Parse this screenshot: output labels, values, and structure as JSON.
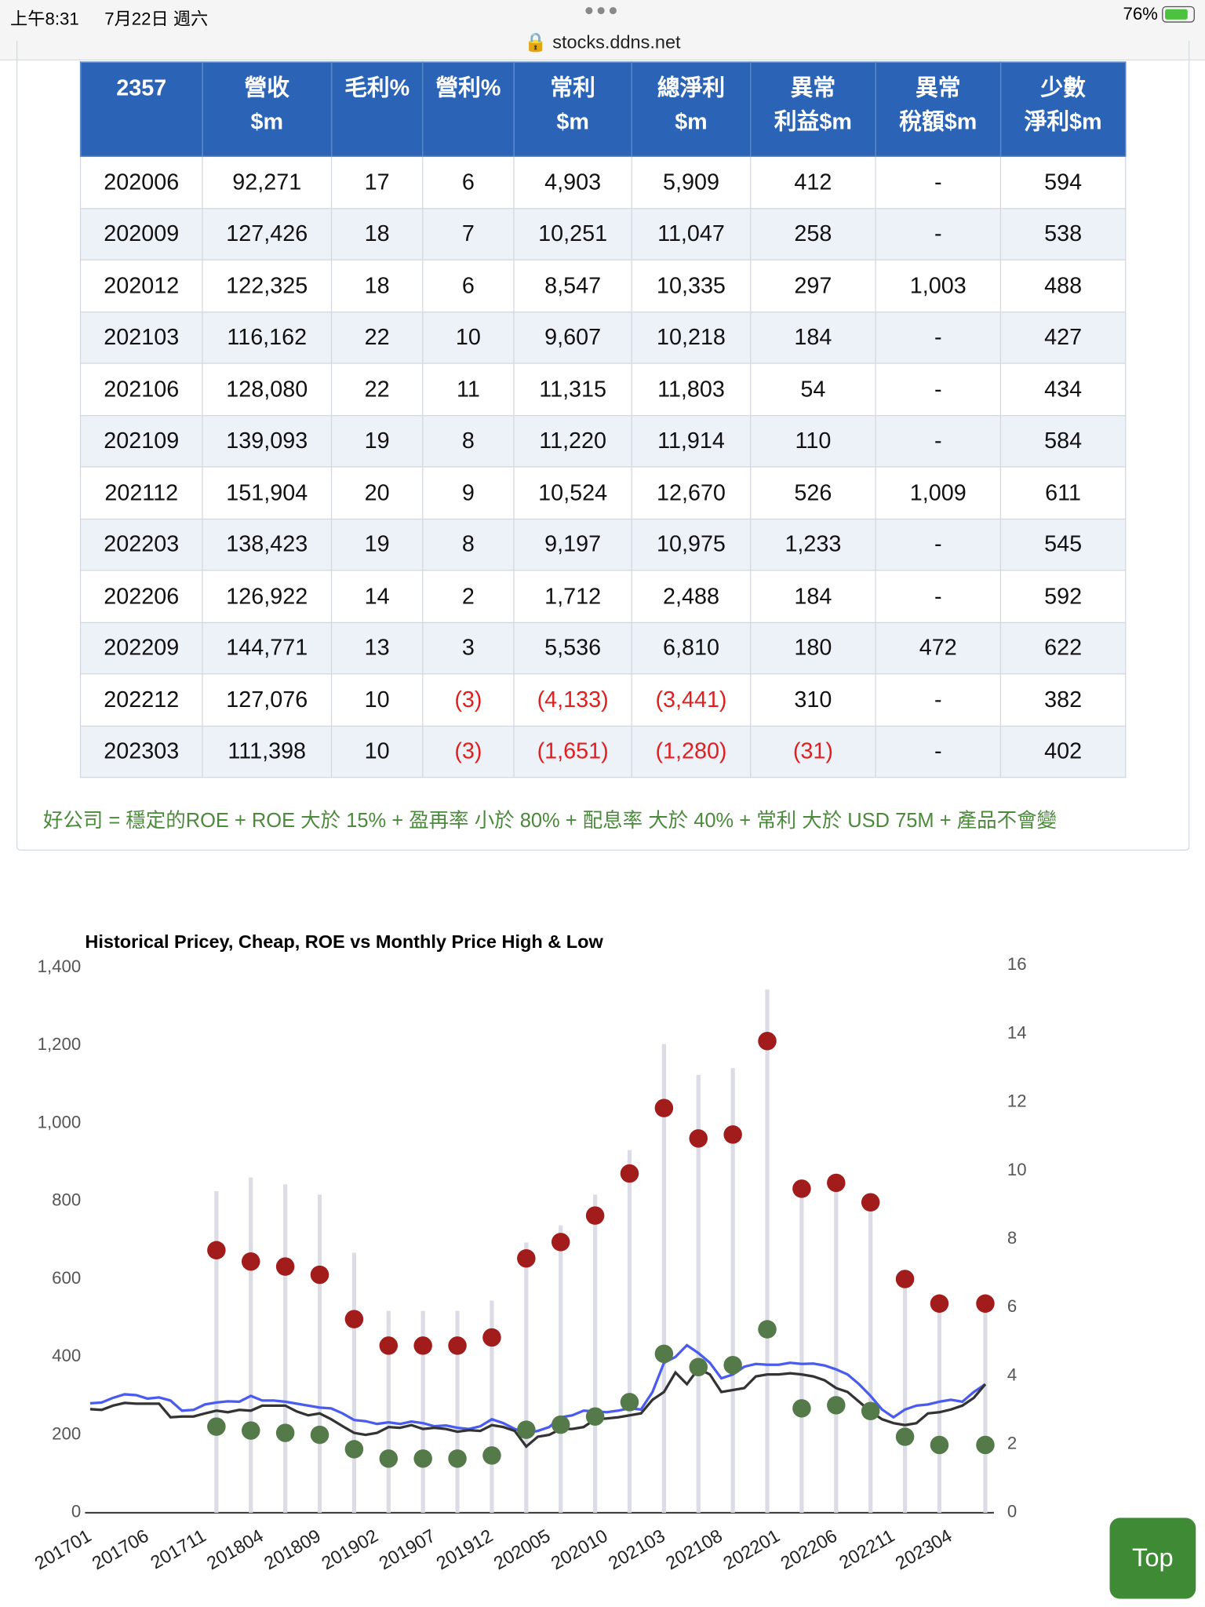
{
  "status_bar": {
    "time": "上午8:31",
    "date": "7月22日 週六",
    "url": "stocks.ddns.net",
    "battery": "76%"
  },
  "table": {
    "headers": [
      [
        "2357"
      ],
      [
        "營收",
        "$m"
      ],
      [
        "毛利%"
      ],
      [
        "營利%"
      ],
      [
        "常利",
        "$m"
      ],
      [
        "總淨利",
        "$m"
      ],
      [
        "異常",
        "利益$m"
      ],
      [
        "異常",
        "稅額$m"
      ],
      [
        "少數",
        "淨利$m"
      ]
    ],
    "rows": [
      [
        "202006",
        "92,271",
        "17",
        "6",
        "4,903",
        "5,909",
        "412",
        "-",
        "594"
      ],
      [
        "202009",
        "127,426",
        "18",
        "7",
        "10,251",
        "11,047",
        "258",
        "-",
        "538"
      ],
      [
        "202012",
        "122,325",
        "18",
        "6",
        "8,547",
        "10,335",
        "297",
        "1,003",
        "488"
      ],
      [
        "202103",
        "116,162",
        "22",
        "10",
        "9,607",
        "10,218",
        "184",
        "-",
        "427"
      ],
      [
        "202106",
        "128,080",
        "22",
        "11",
        "11,315",
        "11,803",
        "54",
        "-",
        "434"
      ],
      [
        "202109",
        "139,093",
        "19",
        "8",
        "11,220",
        "11,914",
        "110",
        "-",
        "584"
      ],
      [
        "202112",
        "151,904",
        "20",
        "9",
        "10,524",
        "12,670",
        "526",
        "1,009",
        "611"
      ],
      [
        "202203",
        "138,423",
        "19",
        "8",
        "9,197",
        "10,975",
        "1,233",
        "-",
        "545"
      ],
      [
        "202206",
        "126,922",
        "14",
        "2",
        "1,712",
        "2,488",
        "184",
        "-",
        "592"
      ],
      [
        "202209",
        "144,771",
        "13",
        "3",
        "5,536",
        "6,810",
        "180",
        "472",
        "622"
      ],
      [
        "202212",
        "127,076",
        "10",
        "(3)",
        "(4,133)",
        "(3,441)",
        "310",
        "-",
        "382"
      ],
      [
        "202303",
        "111,398",
        "10",
        "(3)",
        "(1,651)",
        "(1,280)",
        "(31)",
        "-",
        "402"
      ]
    ]
  },
  "note": "好公司 = 穩定的ROE + ROE 大於 15% + 盈再率 小於 80% + 配息率 大於 40% + 常利 大於 USD 75M + 產品不會變",
  "top_button": "Top",
  "chart_data": {
    "type": "combo",
    "title": "Historical Pricey, Cheap, ROE vs Monthly Price High & Low",
    "categories": [
      "201701",
      null,
      null,
      null,
      null,
      "201706",
      null,
      null,
      null,
      null,
      "201711",
      null,
      null,
      null,
      null,
      "201804",
      null,
      null,
      null,
      null,
      "201809",
      null,
      null,
      null,
      null,
      "201902",
      null,
      null,
      null,
      null,
      "201907",
      null,
      null,
      null,
      null,
      "201912",
      null,
      null,
      null,
      null,
      "202005",
      null,
      null,
      null,
      null,
      "202010",
      null,
      null,
      null,
      null,
      "202103",
      null,
      null,
      null,
      null,
      "202108",
      null,
      null,
      null,
      null,
      "202201",
      null,
      null,
      null,
      null,
      "202206",
      null,
      null,
      null,
      null,
      "202211",
      null,
      null,
      null,
      null,
      "202304",
      null,
      null,
      null
    ],
    "ylim": [
      0,
      1400
    ],
    "yticks": [
      0,
      200,
      400,
      600,
      800,
      {
        "value": 1000,
        "label": "1,000"
      },
      {
        "value": 1200,
        "label": "1,200"
      },
      {
        "value": 1400,
        "label": "1,400"
      }
    ],
    "y2lim": [
      0,
      16
    ],
    "y2ticks": [
      0,
      2,
      4,
      6,
      8,
      10,
      12,
      14,
      16
    ],
    "series": [
      {
        "type": "bar",
        "axis": "y2",
        "color": "#dcdce6",
        "values": [
          null,
          null,
          null,
          null,
          null,
          null,
          null,
          null,
          null,
          null,
          null,
          9.4,
          null,
          null,
          9.8,
          null,
          null,
          9.6,
          null,
          null,
          9.3,
          null,
          null,
          7.6,
          null,
          null,
          5.9,
          null,
          null,
          5.9,
          null,
          null,
          5.9,
          null,
          null,
          6.2,
          null,
          null,
          7.9,
          null,
          null,
          8.4,
          null,
          null,
          9.3,
          null,
          null,
          10.6,
          null,
          null,
          13.7,
          null,
          null,
          12.8,
          null,
          null,
          13.0,
          null,
          null,
          15.3,
          null,
          null,
          9.5,
          null,
          null,
          9.6,
          null,
          null,
          9.1,
          null,
          null,
          6.8,
          null,
          null,
          6.1,
          null,
          null,
          null,
          6.1
        ]
      },
      {
        "type": "line",
        "color": "#4a5cf0",
        "values": [
          281,
          283,
          295,
          304,
          302,
          293,
          296,
          288,
          262,
          264,
          278,
          283,
          286,
          285,
          300,
          288,
          288,
          285,
          280,
          275,
          270,
          268,
          255,
          238,
          235,
          228,
          232,
          228,
          234,
          230,
          222,
          224,
          218,
          215,
          222,
          240,
          230,
          215,
          205,
          210,
          220,
          245,
          250,
          262,
          260,
          258,
          262,
          268,
          265,
          310,
          385,
          400,
          430,
          410,
          385,
          345,
          355,
          375,
          382,
          380,
          380,
          385,
          382,
          383,
          378,
          368,
          355,
          330,
          300,
          265,
          245,
          265,
          275,
          278,
          285,
          290,
          285,
          310,
          330
        ]
      },
      {
        "type": "line",
        "color": "#333333",
        "values": [
          266,
          264,
          275,
          282,
          280,
          280,
          280,
          245,
          247,
          247,
          255,
          262,
          258,
          264,
          262,
          275,
          275,
          275,
          260,
          250,
          255,
          240,
          222,
          205,
          200,
          205,
          220,
          218,
          225,
          215,
          218,
          215,
          208,
          212,
          210,
          225,
          220,
          210,
          170,
          195,
          200,
          215,
          215,
          220,
          240,
          242,
          245,
          250,
          255,
          290,
          310,
          360,
          330,
          370,
          355,
          310,
          315,
          320,
          350,
          355,
          355,
          358,
          355,
          350,
          340,
          320,
          310,
          285,
          260,
          240,
          230,
          225,
          230,
          255,
          258,
          265,
          275,
          295,
          330
        ]
      },
      {
        "type": "scatter",
        "color": "#a31c1c",
        "values": [
          null,
          null,
          null,
          null,
          null,
          null,
          null,
          null,
          null,
          null,
          null,
          674,
          null,
          null,
          645,
          null,
          null,
          632,
          null,
          null,
          611,
          null,
          null,
          497,
          null,
          null,
          429,
          null,
          null,
          429,
          null,
          null,
          429,
          null,
          null,
          450,
          null,
          null,
          653,
          null,
          null,
          695,
          null,
          null,
          763,
          null,
          null,
          871,
          null,
          null,
          1039,
          null,
          null,
          961,
          null,
          null,
          971,
          null,
          null,
          1211,
          null,
          null,
          832,
          null,
          null,
          847,
          null,
          null,
          797,
          null,
          null,
          600,
          null,
          null,
          537,
          null,
          null,
          null,
          537
        ]
      },
      {
        "type": "scatter",
        "color": "#557a4a",
        "values": [
          null,
          null,
          null,
          null,
          null,
          null,
          null,
          null,
          null,
          null,
          null,
          221,
          null,
          null,
          211,
          null,
          null,
          205,
          null,
          null,
          200,
          null,
          null,
          163,
          null,
          null,
          139,
          null,
          null,
          139,
          null,
          null,
          139,
          null,
          null,
          147,
          null,
          null,
          213,
          null,
          null,
          226,
          null,
          null,
          247,
          null,
          null,
          284,
          null,
          null,
          408,
          null,
          null,
          374,
          null,
          null,
          379,
          null,
          null,
          471,
          null,
          null,
          268,
          null,
          null,
          276,
          null,
          null,
          261,
          null,
          null,
          195,
          null,
          null,
          174,
          null,
          null,
          null,
          174
        ]
      }
    ]
  }
}
